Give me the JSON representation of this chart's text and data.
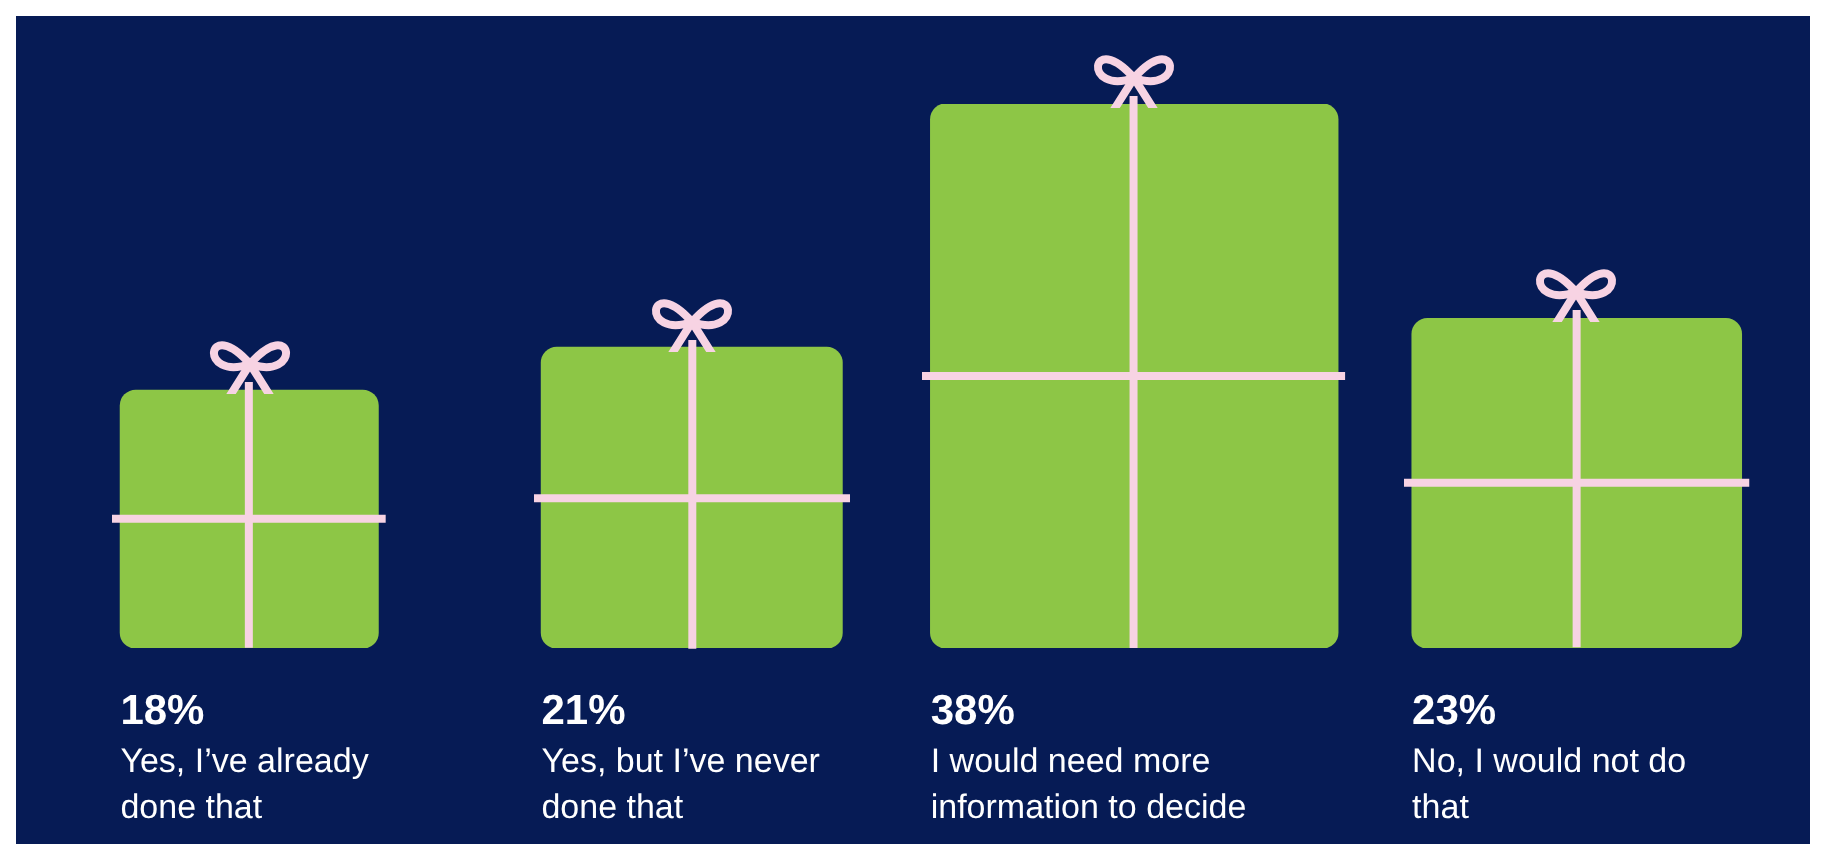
{
  "chart_data": {
    "type": "bar",
    "categories": [
      "Yes, I’ve already done that",
      "Yes, but I’ve never done that",
      "I would need more information to decide",
      "No, I would not do that"
    ],
    "values": [
      18,
      21,
      38,
      23
    ],
    "value_labels": [
      "18%",
      "21%",
      "38%",
      "23%"
    ],
    "color": "#8dc646"
  }
}
